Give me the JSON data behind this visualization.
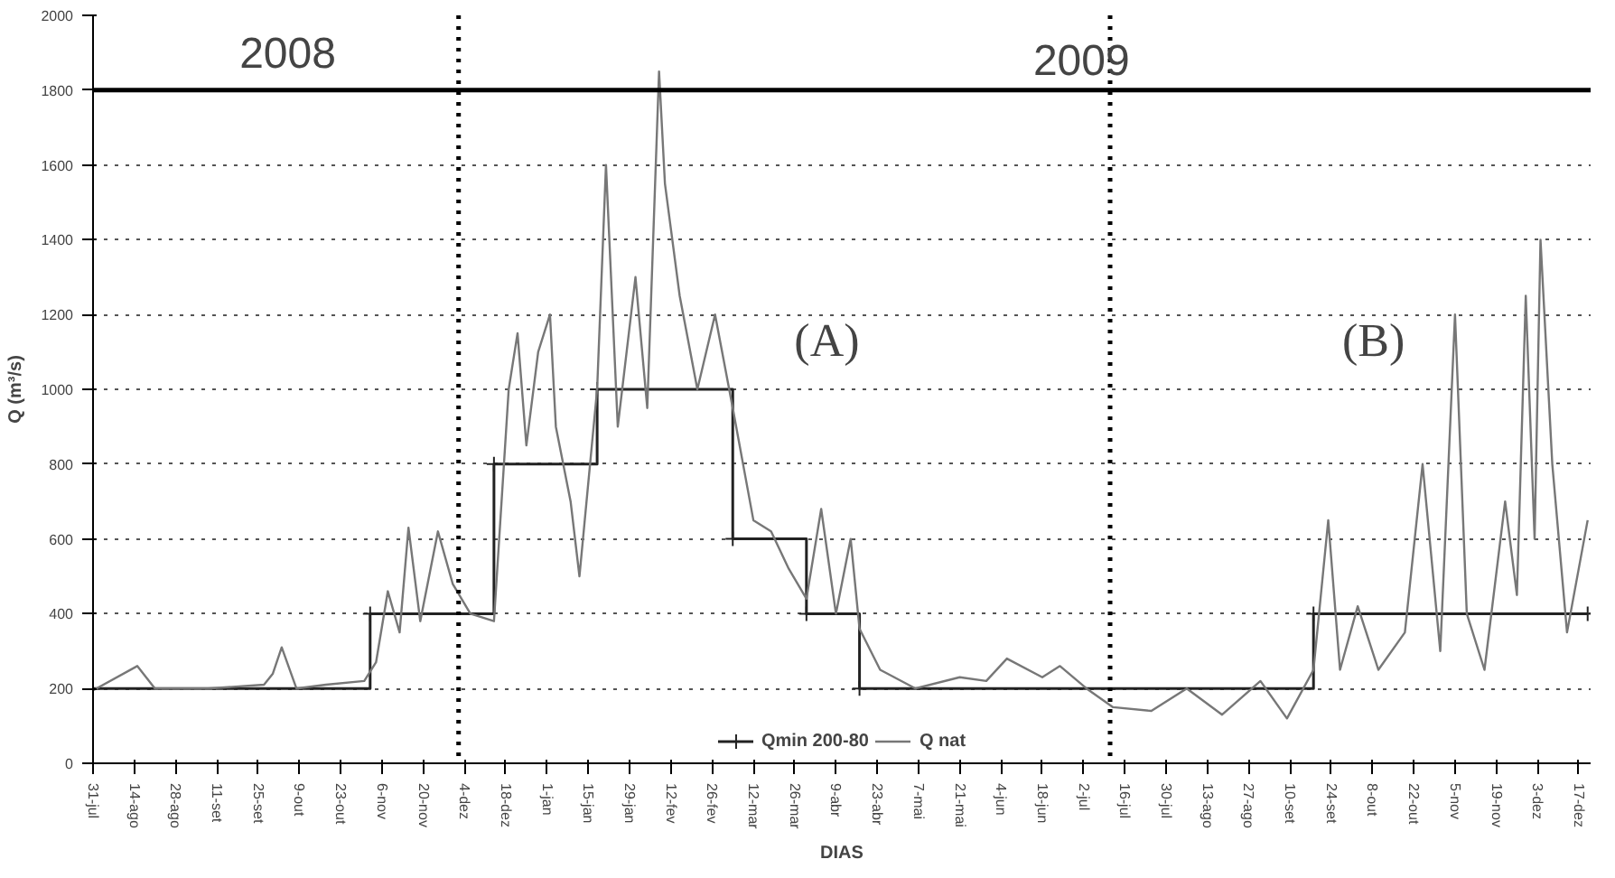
{
  "chart_data": {
    "type": "line",
    "xlabel": "DIAS",
    "ylabel": "Q (m³/s)",
    "annotations": [
      "2008",
      "2009",
      "(A)",
      "(B)"
    ],
    "xlim": [
      "2008-07-31",
      "2009-12-21"
    ],
    "ylim": [
      0,
      2000
    ],
    "yticks": [
      0,
      200,
      400,
      600,
      800,
      1000,
      1200,
      1400,
      1600,
      1800,
      2000
    ],
    "xticks": [
      {
        "value": "2008-07-31",
        "label": "31-jul"
      },
      {
        "value": "2008-08-14",
        "label": "14-ago"
      },
      {
        "value": "2008-08-28",
        "label": "28-ago"
      },
      {
        "value": "2008-09-11",
        "label": "11-set"
      },
      {
        "value": "2008-09-25",
        "label": "25-set"
      },
      {
        "value": "2008-10-09",
        "label": "9-out"
      },
      {
        "value": "2008-10-23",
        "label": "23-out"
      },
      {
        "value": "2008-11-06",
        "label": "6-nov"
      },
      {
        "value": "2008-11-20",
        "label": "20-nov"
      },
      {
        "value": "2008-12-04",
        "label": "4-dez"
      },
      {
        "value": "2008-12-18",
        "label": "18-dez"
      },
      {
        "value": "2009-01-01",
        "label": "1-jan"
      },
      {
        "value": "2009-01-15",
        "label": "15-jan"
      },
      {
        "value": "2009-01-29",
        "label": "29-jan"
      },
      {
        "value": "2009-02-12",
        "label": "12-fev"
      },
      {
        "value": "2009-02-26",
        "label": "26-fev"
      },
      {
        "value": "2009-03-12",
        "label": "12-mar"
      },
      {
        "value": "2009-03-26",
        "label": "26-mar"
      },
      {
        "value": "2009-04-09",
        "label": "9-abr"
      },
      {
        "value": "2009-04-23",
        "label": "23-abr"
      },
      {
        "value": "2009-05-07",
        "label": "7-mai"
      },
      {
        "value": "2009-05-21",
        "label": "21-mai"
      },
      {
        "value": "2009-06-04",
        "label": "4-jun"
      },
      {
        "value": "2009-06-18",
        "label": "18-jun"
      },
      {
        "value": "2009-07-02",
        "label": "2-jul"
      },
      {
        "value": "2009-07-16",
        "label": "16-jul"
      },
      {
        "value": "2009-07-30",
        "label": "30-jul"
      },
      {
        "value": "2009-08-13",
        "label": "13-ago"
      },
      {
        "value": "2009-08-27",
        "label": "27-ago"
      },
      {
        "value": "2009-09-10",
        "label": "10-set"
      },
      {
        "value": "2009-09-24",
        "label": "24-set"
      },
      {
        "value": "2009-10-08",
        "label": "8-out"
      },
      {
        "value": "2009-10-22",
        "label": "22-out"
      },
      {
        "value": "2009-11-05",
        "label": "5-nov"
      },
      {
        "value": "2009-11-19",
        "label": "19-nov"
      },
      {
        "value": "2009-12-03",
        "label": "3-dez"
      },
      {
        "value": "2009-12-17",
        "label": "17-dez"
      }
    ],
    "grid": "y",
    "legend": "bottom",
    "ref_lines": [
      {
        "axis": "y",
        "value": 1800,
        "color": "#000000",
        "line_style": "solid"
      },
      {
        "axis": "x",
        "value": "2008-12-02",
        "color": "#000000",
        "line_style": "dotted"
      },
      {
        "axis": "x",
        "value": "2009-07-11",
        "color": "#000000",
        "line_style": "dotted"
      }
    ],
    "series": [
      {
        "name": "Qmin 200-80",
        "type": "step",
        "color": "#222222",
        "marker": "cross",
        "line_style": "solid",
        "x": [
          "2008-07-31",
          "2008-11-02",
          "2008-12-14",
          "2009-01-18",
          "2009-03-05",
          "2009-03-30",
          "2009-04-17",
          "2009-09-18",
          "2009-12-20"
        ],
        "values": [
          200,
          400,
          800,
          1000,
          600,
          400,
          200,
          400,
          400
        ]
      },
      {
        "name": "Q nat",
        "type": "line",
        "color": "#777777",
        "marker": "none",
        "line_style": "solid",
        "x": [
          "2008-07-31",
          "2008-08-15",
          "2008-08-21",
          "2008-09-08",
          "2008-09-27",
          "2008-09-30",
          "2008-10-03",
          "2008-10-08",
          "2008-10-18",
          "2008-10-31",
          "2008-11-04",
          "2008-11-08",
          "2008-11-12",
          "2008-11-15",
          "2008-11-19",
          "2008-11-25",
          "2008-11-30",
          "2008-12-06",
          "2008-12-14",
          "2008-12-19",
          "2008-12-22",
          "2008-12-25",
          "2008-12-29",
          "2009-01-02",
          "2009-01-04",
          "2009-01-09",
          "2009-01-12",
          "2009-01-18",
          "2009-01-21",
          "2009-01-25",
          "2009-01-28",
          "2009-01-31",
          "2009-02-04",
          "2009-02-08",
          "2009-02-10",
          "2009-02-15",
          "2009-02-21",
          "2009-02-27",
          "2009-03-05",
          "2009-03-12",
          "2009-03-18",
          "2009-03-24",
          "2009-03-30",
          "2009-04-04",
          "2009-04-09",
          "2009-04-14",
          "2009-04-17",
          "2009-04-24",
          "2009-05-06",
          "2009-05-21",
          "2009-05-30",
          "2009-06-06",
          "2009-06-18",
          "2009-06-24",
          "2009-07-03",
          "2009-07-12",
          "2009-07-25",
          "2009-08-06",
          "2009-08-18",
          "2009-08-31",
          "2009-09-09",
          "2009-09-18",
          "2009-09-23",
          "2009-09-27",
          "2009-10-03",
          "2009-10-10",
          "2009-10-19",
          "2009-10-25",
          "2009-10-31",
          "2009-11-05",
          "2009-11-09",
          "2009-11-15",
          "2009-11-22",
          "2009-11-26",
          "2009-11-29",
          "2009-12-02",
          "2009-12-04",
          "2009-12-08",
          "2009-12-13",
          "2009-12-20"
        ],
        "values": [
          195,
          260,
          200,
          200,
          210,
          240,
          310,
          200,
          210,
          220,
          270,
          460,
          350,
          630,
          380,
          620,
          480,
          400,
          380,
          1000,
          1150,
          850,
          1100,
          1200,
          900,
          700,
          500,
          1000,
          1600,
          900,
          1100,
          1300,
          950,
          1850,
          1550,
          1250,
          1000,
          1200,
          950,
          650,
          620,
          520,
          440,
          680,
          400,
          600,
          360,
          250,
          200,
          230,
          220,
          280,
          230,
          260,
          200,
          150,
          140,
          200,
          130,
          220,
          120,
          250,
          650,
          250,
          420,
          250,
          350,
          800,
          300,
          1200,
          400,
          250,
          700,
          450,
          1250,
          600,
          1400,
          800,
          350,
          650
        ]
      }
    ]
  }
}
